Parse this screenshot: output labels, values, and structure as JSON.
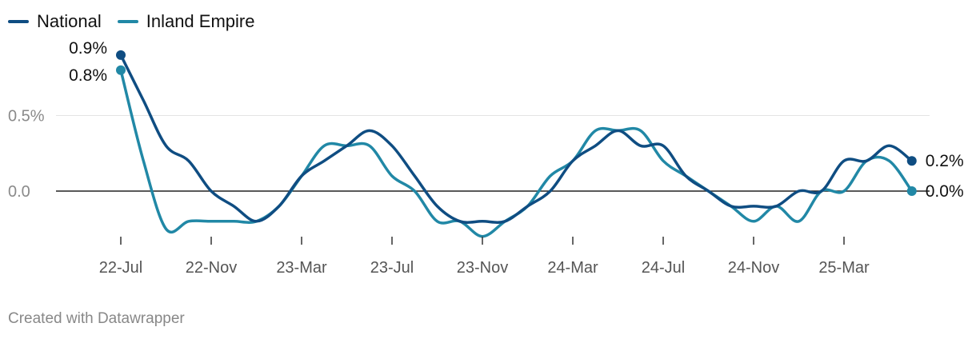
{
  "chart_data": {
    "type": "line",
    "x": [
      "2022-07",
      "2022-08",
      "2022-09",
      "2022-10",
      "2022-11",
      "2022-12",
      "2023-01",
      "2023-02",
      "2023-03",
      "2023-04",
      "2023-05",
      "2023-06",
      "2023-07",
      "2023-08",
      "2023-09",
      "2023-10",
      "2023-11",
      "2023-12",
      "2024-01",
      "2024-02",
      "2024-03",
      "2024-04",
      "2024-05",
      "2024-06",
      "2024-07",
      "2024-08",
      "2024-09",
      "2024-10",
      "2024-11",
      "2024-12",
      "2025-01",
      "2025-02",
      "2025-03",
      "2025-04",
      "2025-05",
      "2025-06"
    ],
    "x_tick_labels": [
      {
        "x": "2022-07",
        "label": "22-Jul"
      },
      {
        "x": "2022-11",
        "label": "22-Nov"
      },
      {
        "x": "2023-03",
        "label": "23-Mar"
      },
      {
        "x": "2023-07",
        "label": "23-Jul"
      },
      {
        "x": "2023-11",
        "label": "23-Nov"
      },
      {
        "x": "2024-03",
        "label": "24-Mar"
      },
      {
        "x": "2024-07",
        "label": "24-Jul"
      },
      {
        "x": "2024-11",
        "label": "24-Nov"
      },
      {
        "x": "2025-03",
        "label": "25-Mar"
      }
    ],
    "y_ticks": [
      {
        "value": 0,
        "label": "0.0"
      },
      {
        "value": 0.5,
        "label": "0.5%"
      }
    ],
    "ylim": [
      -0.35,
      1.0
    ],
    "series": [
      {
        "name": "National",
        "color": "#0f4d82",
        "values": [
          0.9,
          0.6,
          0.3,
          0.2,
          0.0,
          -0.1,
          -0.2,
          -0.1,
          0.1,
          0.2,
          0.3,
          0.4,
          0.3,
          0.1,
          -0.1,
          -0.2,
          -0.2,
          -0.2,
          -0.1,
          0.0,
          0.2,
          0.3,
          0.4,
          0.3,
          0.3,
          0.1,
          0.0,
          -0.1,
          -0.1,
          -0.1,
          0.0,
          0.0,
          0.2,
          0.2,
          0.3,
          0.2
        ],
        "end_label": "0.2%",
        "start_label": "0.9%"
      },
      {
        "name": "Inland Empire",
        "color": "#2188a6",
        "values": [
          0.8,
          0.2,
          -0.25,
          -0.2,
          -0.2,
          -0.2,
          -0.2,
          -0.1,
          0.1,
          0.3,
          0.3,
          0.3,
          0.1,
          0.0,
          -0.2,
          -0.2,
          -0.3,
          -0.2,
          -0.1,
          0.1,
          0.2,
          0.4,
          0.4,
          0.4,
          0.2,
          0.1,
          0.0,
          -0.1,
          -0.2,
          -0.1,
          -0.2,
          0.0,
          0.0,
          0.2,
          0.2,
          0.0
        ],
        "end_label": "0.0%",
        "start_label": "0.8%"
      }
    ],
    "grid": true,
    "legend_position": "top-left"
  },
  "footer": {
    "credit": "Created with Datawrapper"
  }
}
